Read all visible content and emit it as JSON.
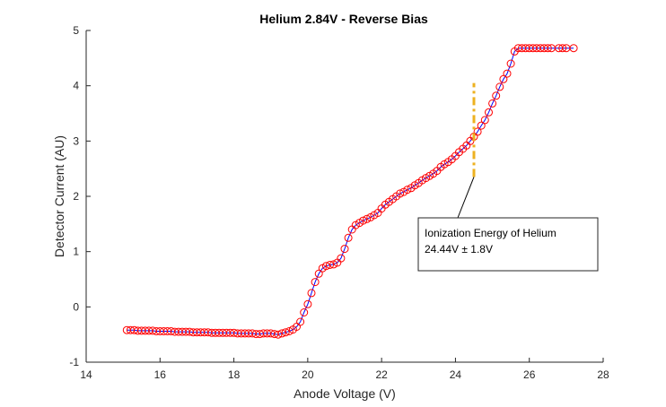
{
  "chart_data": {
    "type": "scatter",
    "title": "Helium 2.84V - Reverse Bias",
    "xlabel": "Anode Voltage (V)",
    "ylabel": "Detector Current (AU)",
    "xlim": [
      14,
      28
    ],
    "ylim": [
      -1,
      5
    ],
    "xticks": [
      14,
      16,
      18,
      20,
      22,
      24,
      26,
      28
    ],
    "yticks": [
      -1,
      0,
      1,
      2,
      3,
      4,
      5
    ],
    "grid": false,
    "series": [
      {
        "marker": "circle",
        "marker_color": "#ff0000",
        "line_color": "#0000ff",
        "x": [
          15.1,
          15.2,
          15.3,
          15.4,
          15.5,
          15.6,
          15.7,
          15.8,
          15.9,
          16.0,
          16.1,
          16.2,
          16.3,
          16.4,
          16.5,
          16.6,
          16.7,
          16.8,
          16.9,
          17.0,
          17.1,
          17.2,
          17.3,
          17.4,
          17.5,
          17.6,
          17.7,
          17.8,
          17.9,
          18.0,
          18.1,
          18.2,
          18.3,
          18.4,
          18.5,
          18.6,
          18.7,
          18.8,
          18.9,
          19.0,
          19.1,
          19.2,
          19.3,
          19.4,
          19.5,
          19.6,
          19.7,
          19.8,
          19.9,
          20.0,
          20.1,
          20.2,
          20.3,
          20.4,
          20.5,
          20.6,
          20.7,
          20.8,
          20.9,
          21.0,
          21.1,
          21.2,
          21.3,
          21.4,
          21.5,
          21.6,
          21.7,
          21.8,
          21.9,
          22.0,
          22.1,
          22.2,
          22.3,
          22.4,
          22.5,
          22.6,
          22.7,
          22.8,
          22.9,
          23.0,
          23.1,
          23.2,
          23.3,
          23.4,
          23.5,
          23.6,
          23.7,
          23.8,
          23.9,
          24.0,
          24.1,
          24.2,
          24.3,
          24.4,
          24.5,
          24.6,
          24.7,
          24.8,
          24.9,
          25.0,
          25.1,
          25.2,
          25.3,
          25.4,
          25.5,
          25.6,
          25.7,
          25.8,
          25.9,
          26.0,
          26.1,
          26.2,
          26.3,
          26.4,
          26.5,
          26.6,
          26.8,
          26.9,
          27.0,
          27.2
        ],
        "y": [
          -0.42,
          -0.42,
          -0.42,
          -0.43,
          -0.43,
          -0.43,
          -0.43,
          -0.43,
          -0.44,
          -0.44,
          -0.44,
          -0.44,
          -0.44,
          -0.45,
          -0.45,
          -0.45,
          -0.45,
          -0.45,
          -0.46,
          -0.46,
          -0.46,
          -0.46,
          -0.46,
          -0.47,
          -0.47,
          -0.47,
          -0.47,
          -0.47,
          -0.47,
          -0.47,
          -0.48,
          -0.48,
          -0.48,
          -0.48,
          -0.48,
          -0.49,
          -0.49,
          -0.48,
          -0.48,
          -0.48,
          -0.49,
          -0.5,
          -0.48,
          -0.46,
          -0.44,
          -0.41,
          -0.36,
          -0.27,
          -0.1,
          0.05,
          0.25,
          0.45,
          0.6,
          0.7,
          0.74,
          0.76,
          0.77,
          0.8,
          0.88,
          1.05,
          1.25,
          1.4,
          1.48,
          1.52,
          1.56,
          1.59,
          1.62,
          1.66,
          1.7,
          1.78,
          1.85,
          1.9,
          1.95,
          2.0,
          2.05,
          2.08,
          2.12,
          2.15,
          2.2,
          2.24,
          2.29,
          2.33,
          2.37,
          2.41,
          2.46,
          2.53,
          2.58,
          2.62,
          2.67,
          2.73,
          2.8,
          2.86,
          2.92,
          3.0,
          3.08,
          3.17,
          3.28,
          3.38,
          3.52,
          3.68,
          3.82,
          3.98,
          4.12,
          4.22,
          4.4,
          4.62,
          4.68,
          4.68,
          4.68,
          4.68,
          4.68,
          4.68,
          4.68,
          4.68,
          4.68,
          4.68,
          4.68,
          4.68,
          4.68,
          4.68
        ]
      }
    ],
    "ionization_line": {
      "x": 24.5,
      "y_from": 2.35,
      "y_to": 4.05,
      "color": "#EDB120"
    },
    "annotation": {
      "line1": "Ionization Energy of Helium",
      "line2": "24.44V ± 1.8V",
      "arrow_to": [
        24.5,
        2.35
      ]
    }
  }
}
